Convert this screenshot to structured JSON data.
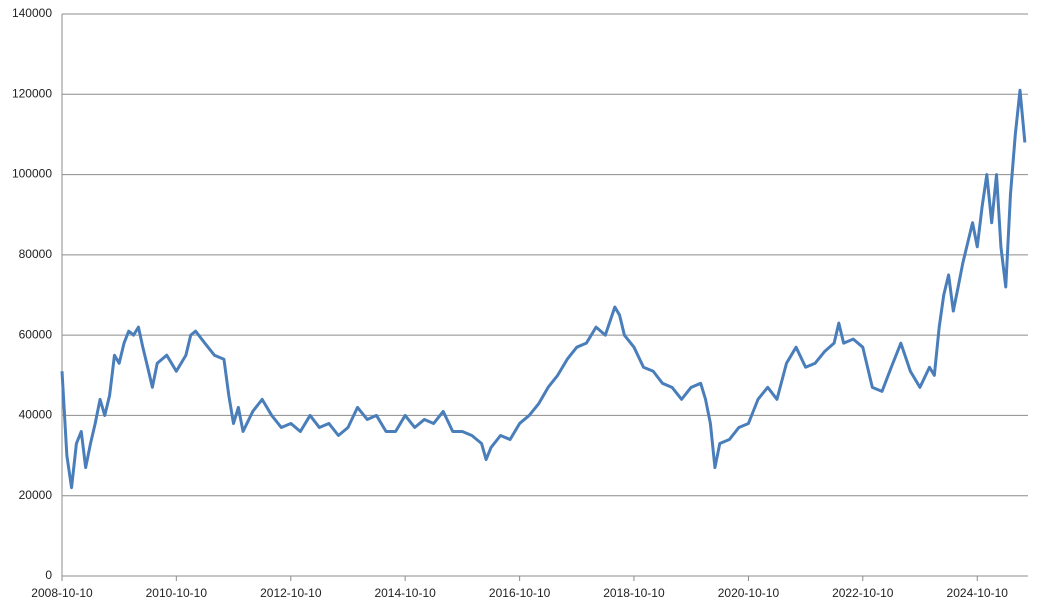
{
  "chart_data": {
    "type": "line",
    "x": [
      "2008-10-10",
      "2008-11-10",
      "2008-12-10",
      "2009-01-10",
      "2009-02-10",
      "2009-03-10",
      "2009-04-10",
      "2009-05-10",
      "2009-06-10",
      "2009-07-10",
      "2009-08-10",
      "2009-09-10",
      "2009-10-10",
      "2009-11-10",
      "2009-12-10",
      "2010-01-10",
      "2010-02-10",
      "2010-03-10",
      "2010-04-10",
      "2010-05-10",
      "2010-06-10",
      "2010-08-10",
      "2010-10-10",
      "2010-12-10",
      "2011-01-10",
      "2011-02-10",
      "2011-04-10",
      "2011-06-10",
      "2011-08-10",
      "2011-09-10",
      "2011-10-10",
      "2011-11-10",
      "2011-12-10",
      "2012-02-10",
      "2012-04-10",
      "2012-06-10",
      "2012-08-10",
      "2012-10-10",
      "2012-12-10",
      "2013-02-10",
      "2013-04-10",
      "2013-06-10",
      "2013-08-10",
      "2013-10-10",
      "2013-12-10",
      "2014-02-10",
      "2014-04-10",
      "2014-06-10",
      "2014-08-10",
      "2014-10-10",
      "2014-12-10",
      "2015-02-10",
      "2015-04-10",
      "2015-06-10",
      "2015-08-10",
      "2015-10-10",
      "2015-12-10",
      "2016-02-10",
      "2016-03-10",
      "2016-04-10",
      "2016-06-10",
      "2016-08-10",
      "2016-10-10",
      "2016-12-10",
      "2017-02-10",
      "2017-04-10",
      "2017-06-10",
      "2017-08-10",
      "2017-10-10",
      "2017-12-10",
      "2018-02-10",
      "2018-04-10",
      "2018-06-10",
      "2018-07-10",
      "2018-08-10",
      "2018-10-10",
      "2018-12-10",
      "2019-02-10",
      "2019-04-10",
      "2019-06-10",
      "2019-08-10",
      "2019-10-10",
      "2019-12-10",
      "2020-01-10",
      "2020-02-10",
      "2020-03-10",
      "2020-04-10",
      "2020-06-10",
      "2020-08-10",
      "2020-10-10",
      "2020-12-10",
      "2021-02-10",
      "2021-04-10",
      "2021-06-10",
      "2021-08-10",
      "2021-10-10",
      "2021-12-10",
      "2022-02-10",
      "2022-04-10",
      "2022-05-10",
      "2022-06-10",
      "2022-08-10",
      "2022-10-10",
      "2022-12-10",
      "2023-02-10",
      "2023-04-10",
      "2023-06-10",
      "2023-08-10",
      "2023-10-10",
      "2023-12-10",
      "2024-01-10",
      "2024-02-10",
      "2024-03-10",
      "2024-04-10",
      "2024-05-10",
      "2024-06-10",
      "2024-07-10",
      "2024-08-10",
      "2024-09-10",
      "2024-10-10",
      "2024-11-10",
      "2024-12-10",
      "2025-01-10",
      "2025-02-10",
      "2025-03-10",
      "2025-04-10",
      "2025-05-10",
      "2025-06-10",
      "2025-07-10",
      "2025-08-10"
    ],
    "values": [
      51000,
      30000,
      22000,
      33000,
      36000,
      27000,
      33000,
      38000,
      44000,
      40000,
      45000,
      55000,
      53000,
      58000,
      61000,
      60000,
      62000,
      57000,
      52000,
      47000,
      53000,
      55000,
      51000,
      55000,
      60000,
      61000,
      58000,
      55000,
      54000,
      45000,
      38000,
      42000,
      36000,
      41000,
      44000,
      40000,
      37000,
      38000,
      36000,
      40000,
      37000,
      38000,
      35000,
      37000,
      42000,
      39000,
      40000,
      36000,
      36000,
      40000,
      37000,
      39000,
      38000,
      41000,
      36000,
      36000,
      35000,
      33000,
      29000,
      32000,
      35000,
      34000,
      38000,
      40000,
      43000,
      47000,
      50000,
      54000,
      57000,
      58000,
      62000,
      60000,
      67000,
      65000,
      60000,
      57000,
      52000,
      51000,
      48000,
      47000,
      44000,
      47000,
      48000,
      44000,
      38000,
      27000,
      33000,
      34000,
      37000,
      38000,
      44000,
      47000,
      44000,
      53000,
      57000,
      52000,
      53000,
      56000,
      58000,
      63000,
      58000,
      59000,
      57000,
      47000,
      46000,
      52000,
      58000,
      51000,
      47000,
      52000,
      50000,
      62000,
      70000,
      75000,
      66000,
      72000,
      78000,
      83000,
      88000,
      82000,
      92000,
      100000,
      88000,
      100000,
      82000,
      72000,
      95000,
      110000,
      121000,
      108000
    ],
    "color": "#4a7ebb",
    "xlim": [
      "2008-10-10",
      "2025-08-30"
    ],
    "xticks": [
      "2008-10-10",
      "2010-10-10",
      "2012-10-10",
      "2014-10-10",
      "2016-10-10",
      "2018-10-10",
      "2020-10-10",
      "2022-10-10",
      "2024-10-10"
    ],
    "ylim": [
      0,
      140000
    ],
    "yticks": [
      0,
      20000,
      40000,
      60000,
      80000,
      100000,
      120000,
      140000
    ],
    "grid": true
  }
}
